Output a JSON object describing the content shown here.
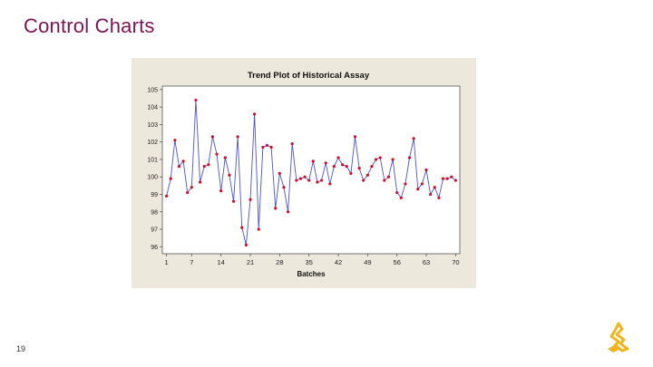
{
  "slide": {
    "title": "Control Charts",
    "page_number": "19"
  },
  "colors": {
    "title": "#7b1452",
    "frame_bg": "#ece8dc",
    "plot_bg": "#ffffff",
    "line": "#4b52d6",
    "point": "#d0102b",
    "logo": "#f2b41e"
  },
  "logo_icon": "corporate-logo-icon",
  "chart_data": {
    "type": "line",
    "title": "Trend Plot of Historical Assay",
    "xlabel": "Batches",
    "ylabel": "",
    "xlim": [
      0,
      71
    ],
    "ylim": [
      95.6,
      105.2
    ],
    "xticks": [
      1,
      7,
      14,
      21,
      28,
      35,
      42,
      49,
      56,
      63,
      70
    ],
    "yticks": [
      96,
      97,
      98,
      99,
      100,
      101,
      102,
      103,
      104,
      105
    ],
    "series": [
      {
        "name": "Assay",
        "x": [
          1,
          2,
          3,
          4,
          5,
          6,
          7,
          8,
          9,
          10,
          11,
          12,
          13,
          14,
          15,
          16,
          17,
          18,
          19,
          20,
          21,
          22,
          23,
          24,
          25,
          26,
          27,
          28,
          29,
          30,
          31,
          32,
          33,
          34,
          35,
          36,
          37,
          38,
          39,
          40,
          41,
          42,
          43,
          44,
          45,
          46,
          47,
          48,
          49,
          50,
          51,
          52,
          53,
          54,
          55,
          56,
          57,
          58,
          59,
          60,
          61,
          62,
          63,
          64,
          65,
          66,
          67,
          68,
          69,
          70
        ],
        "values": [
          98.9,
          99.9,
          102.1,
          100.6,
          100.9,
          99.1,
          99.4,
          104.4,
          99.7,
          100.6,
          100.7,
          102.3,
          101.3,
          99.2,
          101.1,
          100.1,
          98.6,
          102.3,
          97.1,
          96.1,
          98.7,
          103.6,
          97.0,
          101.7,
          101.8,
          101.7,
          98.2,
          100.2,
          99.4,
          98.0,
          101.9,
          99.8,
          99.9,
          100.0,
          99.8,
          100.9,
          99.7,
          99.8,
          100.8,
          99.6,
          100.6,
          101.1,
          100.7,
          100.6,
          100.2,
          102.3,
          100.5,
          99.8,
          100.1,
          100.6,
          101.0,
          101.1,
          99.8,
          100.0,
          101.0,
          99.1,
          98.8,
          99.6,
          101.1,
          102.2,
          99.3,
          99.6,
          100.4,
          99.0,
          99.4,
          98.8,
          99.9,
          99.9,
          100.0,
          99.8
        ]
      }
    ]
  }
}
